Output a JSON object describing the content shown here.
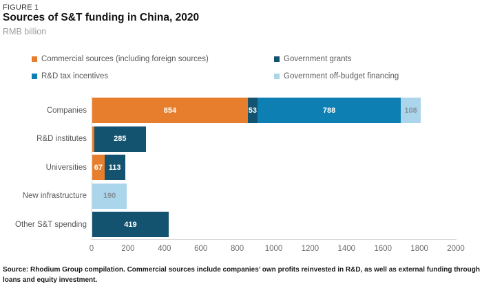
{
  "figure_label": "FIGURE 1",
  "title": "Sources of S&T funding in China, 2020",
  "subtitle": "RMB billion",
  "source_note": "Source: Rhodium Group compilation. Commercial sources include companies’ own profits reinvested in R&D, as well as external funding through loans and equity investment.",
  "colors": {
    "commercial_orange": "#e77e2d",
    "government_grants_blue": "#14536f",
    "rd_tax_incentives_blue": "#0e7fb2",
    "off_budget_light_blue": "#abd5eb",
    "axis_line": "#d4d4d4",
    "category_text": "#595959",
    "tick_text": "#6b6b6b",
    "value_text_on_light": "#84939c"
  },
  "legend": [
    {
      "label": "Commercial sources (including foreign sources)",
      "color": "#e77e2d"
    },
    {
      "label": "Government grants",
      "color": "#14536f"
    },
    {
      "label": "R&D tax incentives",
      "color": "#0e7fb2"
    },
    {
      "label": "Government off-budget financing",
      "color": "#abd5eb"
    }
  ],
  "chart_data": {
    "type": "bar",
    "orientation": "horizontal",
    "stacked": true,
    "title": "Sources of S&T funding in China, 2020",
    "unit": "RMB billion",
    "categories": [
      "Companies",
      "R&D institutes",
      "Universities",
      "New infrastructure",
      "Other S&T spending"
    ],
    "series": [
      {
        "name": "Commercial sources (including foreign sources)",
        "color": "#e77e2d",
        "value_text_color": "#ffffff",
        "values": [
          854,
          10,
          67,
          0,
          0
        ]
      },
      {
        "name": "Government grants",
        "color": "#14536f",
        "value_text_color": "#ffffff",
        "values": [
          53,
          285,
          113,
          0,
          419
        ]
      },
      {
        "name": "R&D tax incentives",
        "color": "#0e7fb2",
        "value_text_color": "#ffffff",
        "values": [
          788,
          0,
          0,
          0,
          0
        ]
      },
      {
        "name": "Government off-budget financing",
        "color": "#abd5eb",
        "value_text_color": "#84939c",
        "values": [
          108,
          0,
          0,
          190,
          0
        ]
      }
    ],
    "xlim": [
      0,
      2000
    ],
    "xticks": [
      0,
      200,
      400,
      600,
      800,
      1000,
      1200,
      1400,
      1600,
      1800,
      2000
    ],
    "label_min": 50,
    "grid": false,
    "legend_position": "top"
  }
}
